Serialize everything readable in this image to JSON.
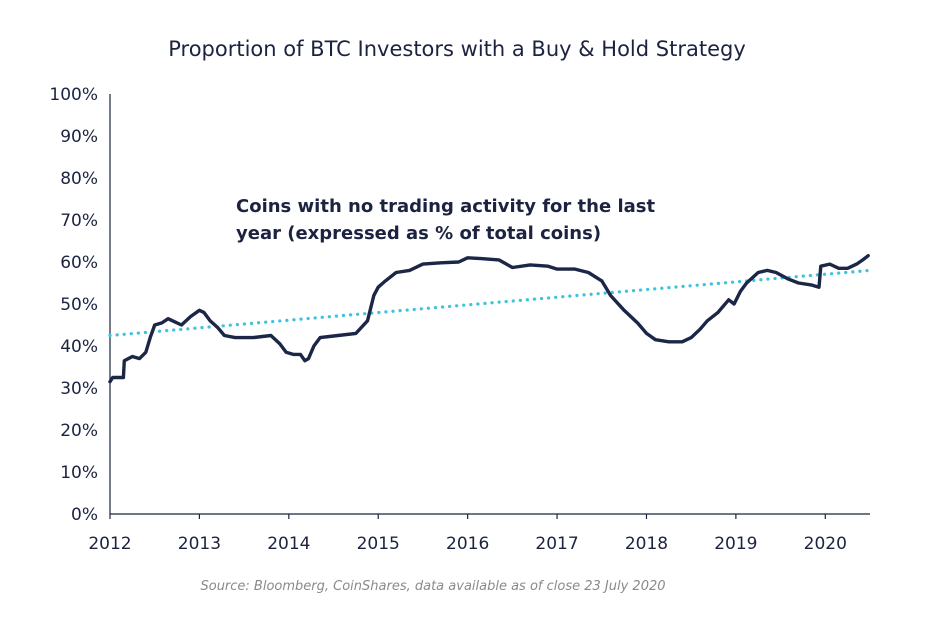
{
  "chart_data": {
    "type": "line",
    "title": "Proportion of BTC Investors with a Buy & Hold Strategy",
    "annotation": [
      "Coins with no trading activity for the last",
      "year (expressed as % of total coins)"
    ],
    "source": "Source: Bloomberg, CoinShares, data available as of close 23 July 2020",
    "xlim": [
      2012,
      2020.5
    ],
    "ylim": [
      0,
      100
    ],
    "x_ticks": [
      "2012",
      "2013",
      "2014",
      "2015",
      "2016",
      "2017",
      "2018",
      "2019",
      "2020"
    ],
    "y_ticks": [
      "0%",
      "10%",
      "20%",
      "30%",
      "40%",
      "50%",
      "60%",
      "70%",
      "80%",
      "90%",
      "100%"
    ],
    "grid": false,
    "legend": "none",
    "colors": {
      "main": "#1c2646",
      "trend": "#3ec3de",
      "axis": "#1c2340"
    },
    "series": [
      {
        "values": [
          [
            2012.0,
            31.5
          ],
          [
            2012.03,
            32.5
          ],
          [
            2012.15,
            32.5
          ],
          [
            2012.16,
            36.5
          ],
          [
            2012.25,
            37.5
          ],
          [
            2012.33,
            37.0
          ],
          [
            2012.4,
            38.5
          ],
          [
            2012.45,
            42.0
          ],
          [
            2012.5,
            45.0
          ],
          [
            2012.58,
            45.5
          ],
          [
            2012.65,
            46.5
          ],
          [
            2012.7,
            46.0
          ],
          [
            2012.8,
            45.0
          ],
          [
            2012.9,
            47.0
          ],
          [
            2013.0,
            48.5
          ],
          [
            2013.05,
            48.0
          ],
          [
            2013.12,
            46.0
          ],
          [
            2013.2,
            44.5
          ],
          [
            2013.28,
            42.5
          ],
          [
            2013.4,
            42.0
          ],
          [
            2013.6,
            42.0
          ],
          [
            2013.8,
            42.5
          ],
          [
            2013.9,
            40.5
          ],
          [
            2013.97,
            38.5
          ],
          [
            2014.05,
            38.0
          ],
          [
            2014.13,
            38.0
          ],
          [
            2014.18,
            36.5
          ],
          [
            2014.22,
            37.0
          ],
          [
            2014.28,
            40.0
          ],
          [
            2014.35,
            42.0
          ],
          [
            2014.55,
            42.5
          ],
          [
            2014.75,
            43.0
          ],
          [
            2014.88,
            46.0
          ],
          [
            2014.95,
            52.0
          ],
          [
            2015.0,
            54.0
          ],
          [
            2015.08,
            55.5
          ],
          [
            2015.2,
            57.5
          ],
          [
            2015.35,
            58.0
          ],
          [
            2015.5,
            59.5
          ],
          [
            2015.7,
            59.8
          ],
          [
            2015.9,
            60.0
          ],
          [
            2016.0,
            61.0
          ],
          [
            2016.15,
            60.8
          ],
          [
            2016.35,
            60.5
          ],
          [
            2016.5,
            58.7
          ],
          [
            2016.7,
            59.3
          ],
          [
            2016.9,
            59.0
          ],
          [
            2017.0,
            58.3
          ],
          [
            2017.2,
            58.3
          ],
          [
            2017.35,
            57.5
          ],
          [
            2017.5,
            55.5
          ],
          [
            2017.6,
            52.0
          ],
          [
            2017.75,
            48.5
          ],
          [
            2017.9,
            45.5
          ],
          [
            2018.0,
            43.0
          ],
          [
            2018.1,
            41.5
          ],
          [
            2018.25,
            41.0
          ],
          [
            2018.4,
            41.0
          ],
          [
            2018.5,
            42.0
          ],
          [
            2018.6,
            44.0
          ],
          [
            2018.68,
            46.0
          ],
          [
            2018.8,
            48.0
          ],
          [
            2018.92,
            51.0
          ],
          [
            2018.98,
            50.0
          ],
          [
            2019.05,
            53.0
          ],
          [
            2019.12,
            55.0
          ],
          [
            2019.25,
            57.5
          ],
          [
            2019.35,
            58.0
          ],
          [
            2019.45,
            57.5
          ],
          [
            2019.58,
            56.0
          ],
          [
            2019.7,
            55.0
          ],
          [
            2019.85,
            54.5
          ],
          [
            2019.93,
            54.0
          ],
          [
            2019.95,
            59.0
          ],
          [
            2020.05,
            59.5
          ],
          [
            2020.15,
            58.5
          ],
          [
            2020.25,
            58.5
          ],
          [
            2020.35,
            59.5
          ],
          [
            2020.42,
            60.5
          ],
          [
            2020.48,
            61.5
          ]
        ]
      },
      {
        "style": "dotted",
        "values": [
          [
            2012.0,
            42.5
          ],
          [
            2020.5,
            58.0
          ]
        ]
      }
    ]
  }
}
